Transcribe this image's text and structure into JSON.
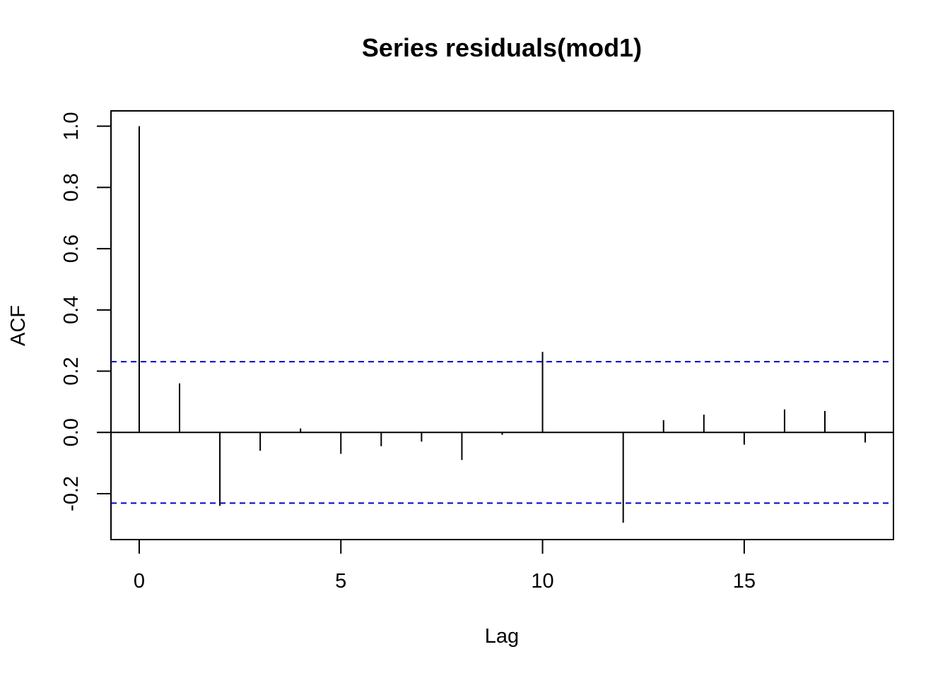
{
  "chart_data": {
    "type": "bar",
    "title": "Series  residuals(mod1)",
    "xlabel": "Lag",
    "ylabel": "ACF",
    "xlim": [
      -0.7,
      18.7
    ],
    "ylim": [
      -0.35,
      1.05
    ],
    "x_ticks": [
      0,
      5,
      10,
      15
    ],
    "y_ticks": [
      -0.2,
      0.0,
      0.2,
      0.4,
      0.6,
      0.8,
      1.0
    ],
    "x_tick_labels": [
      "0",
      "5",
      "10",
      "15"
    ],
    "y_tick_labels": [
      "-0.2",
      "0.0",
      "0.2",
      "0.4",
      "0.6",
      "0.8",
      "1.0"
    ],
    "lags": [
      0,
      1,
      2,
      3,
      4,
      5,
      6,
      7,
      8,
      9,
      10,
      11,
      12,
      13,
      14,
      15,
      16,
      17,
      18
    ],
    "values": [
      1.0,
      0.16,
      -0.24,
      -0.06,
      0.013,
      -0.07,
      -0.045,
      -0.03,
      -0.09,
      -0.008,
      0.263,
      0.0,
      -0.295,
      0.04,
      0.058,
      -0.04,
      0.075,
      0.07,
      -0.033
    ],
    "confidence_bound": 0.231,
    "grid": false,
    "colors": {
      "bars": "#000000",
      "bounds": "#0000cc",
      "zero_line": "#000000"
    }
  }
}
